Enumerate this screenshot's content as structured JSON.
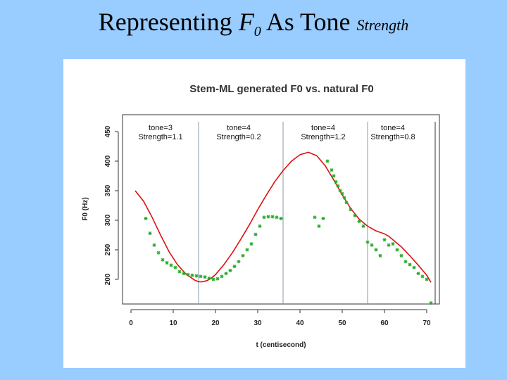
{
  "slide": {
    "title_part1": "Representing ",
    "title_f": "F",
    "title_sub": "0",
    "title_part2": " As Tone ",
    "title_small": "Strength"
  },
  "colors": {
    "background": "#99ccff",
    "panel": "#ffffff",
    "model_line": "#dd1111",
    "natural_points": "#22aa22",
    "boundary": "#8899aa"
  },
  "chart_data": {
    "type": "line",
    "title": "Stem-ML generated F0 vs. natural F0",
    "xlabel": "t (centisecond)",
    "ylabel": "F0 (Hz)",
    "xlim": [
      0,
      73
    ],
    "ylim": [
      175,
      460
    ],
    "xticks": [
      0,
      10,
      20,
      30,
      40,
      50,
      60,
      70
    ],
    "yticks": [
      200,
      250,
      300,
      350,
      400,
      450
    ],
    "grid": false,
    "boundaries": [
      16,
      36,
      56,
      72
    ],
    "annotations": [
      {
        "x": 7,
        "line1": "tone=3",
        "line2": "Strength=1.1"
      },
      {
        "x": 25.5,
        "line1": "tone=4",
        "line2": "Strength=0.2"
      },
      {
        "x": 45.5,
        "line1": "tone=4",
        "line2": "Strength=1.2"
      },
      {
        "x": 62,
        "line1": "tone=4",
        "line2": "Strength=0.8"
      }
    ],
    "series": [
      {
        "style": "line",
        "x": [
          1,
          3,
          5,
          7,
          9,
          11,
          13,
          15,
          16,
          17,
          18,
          19,
          20,
          22,
          24,
          26,
          28,
          30,
          32,
          34,
          36,
          38,
          40,
          42,
          44,
          46,
          48,
          50,
          52,
          54,
          56,
          58,
          60,
          61,
          62,
          64,
          66,
          68,
          70,
          71
        ],
        "y": [
          350,
          332,
          305,
          275,
          247,
          225,
          209,
          199,
          196,
          196,
          198,
          202,
          208,
          225,
          245,
          268,
          292,
          318,
          342,
          365,
          384,
          400,
          411,
          415,
          409,
          392,
          368,
          343,
          320,
          302,
          290,
          282,
          277,
          273,
          267,
          255,
          240,
          224,
          207,
          195
        ]
      },
      {
        "style": "points",
        "x": [
          3.5,
          4.5,
          5.5,
          6.5,
          7.5,
          8.5,
          9.5,
          10.5,
          11.5,
          12.5,
          13.5,
          14.5,
          15.5,
          16.5,
          17.5,
          18.5,
          19.5,
          20.5,
          21.5,
          22.5,
          23.5,
          24.5,
          25.5,
          26.5,
          27.5,
          28.5,
          29.5,
          30.5,
          31.5,
          32.5,
          33.5,
          34.5,
          35.5,
          43.5,
          44.5,
          45.5,
          46.5,
          47.5,
          48,
          48.5,
          49,
          49.5,
          50,
          50.5,
          51,
          52,
          53,
          54,
          55,
          56,
          57,
          58,
          59,
          60,
          61,
          62,
          63,
          64,
          65,
          66,
          67,
          68,
          69,
          70,
          71
        ],
        "y": [
          303,
          278,
          258,
          245,
          233,
          228,
          224,
          220,
          213,
          210,
          208,
          207,
          206,
          205,
          204,
          202,
          200,
          201,
          205,
          210,
          215,
          222,
          230,
          240,
          250,
          260,
          276,
          290,
          305,
          306,
          306,
          305,
          303,
          305,
          290,
          303,
          400,
          385,
          375,
          365,
          358,
          350,
          345,
          338,
          330,
          318,
          308,
          298,
          290,
          263,
          258,
          250,
          240,
          267,
          258,
          260,
          250,
          240,
          230,
          225,
          220,
          210,
          205,
          200,
          160
        ]
      }
    ]
  }
}
